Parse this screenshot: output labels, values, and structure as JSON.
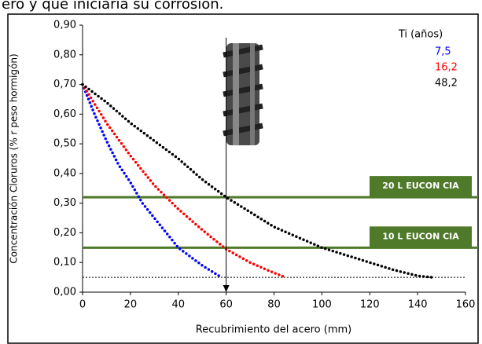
{
  "caption": "ero y que iniciaría su corrosión.",
  "chart_data": {
    "type": "line",
    "xlabel": "Recubrimiento del acero (mm)",
    "ylabel": "Concentración Cloruros (% r peso hormigón)",
    "legend_title": "Ti (años)",
    "legend": "upper right",
    "xlim": [
      0,
      160
    ],
    "xticks": [
      0,
      20,
      40,
      60,
      80,
      100,
      120,
      140,
      160
    ],
    "ylim": [
      0,
      0.9
    ],
    "yticks": [
      {
        "value": 0,
        "label": "0,00"
      },
      {
        "value": 0.1,
        "label": "0,10"
      },
      {
        "value": 0.2,
        "label": "0,20"
      },
      {
        "value": 0.3,
        "label": "0,30"
      },
      {
        "value": 0.4,
        "label": "0,40"
      },
      {
        "value": 0.5,
        "label": "0,50"
      },
      {
        "value": 0.6,
        "label": "0,60"
      },
      {
        "value": 0.7,
        "label": "0,70"
      },
      {
        "value": 0.8,
        "label": "0,80"
      },
      {
        "value": 0.9,
        "label": "0,90"
      }
    ],
    "series": [
      {
        "name": "7,5",
        "color": "#0000ff",
        "x": [
          0,
          5,
          10,
          15,
          20,
          25,
          30,
          35,
          40,
          45,
          50,
          55,
          58
        ],
        "values": [
          0.7,
          0.6,
          0.51,
          0.43,
          0.37,
          0.3,
          0.25,
          0.2,
          0.15,
          0.12,
          0.09,
          0.065,
          0.05
        ]
      },
      {
        "name": "16,2",
        "color": "#ff0000",
        "x": [
          0,
          10,
          20,
          30,
          35,
          40,
          50,
          60,
          70,
          80,
          85
        ],
        "values": [
          0.7,
          0.57,
          0.46,
          0.36,
          0.32,
          0.28,
          0.21,
          0.145,
          0.1,
          0.065,
          0.05
        ]
      },
      {
        "name": "48,2",
        "color": "#000000",
        "x": [
          0,
          10,
          20,
          30,
          40,
          50,
          60,
          70,
          80,
          90,
          100,
          110,
          120,
          130,
          140,
          146
        ],
        "values": [
          0.7,
          0.64,
          0.57,
          0.51,
          0.45,
          0.38,
          0.32,
          0.27,
          0.22,
          0.185,
          0.15,
          0.125,
          0.1,
          0.075,
          0.055,
          0.05
        ]
      }
    ],
    "thresholds": [
      {
        "label": "20 L EUCON CIA",
        "value": 0.32,
        "color": "#4e7a2a"
      },
      {
        "label": "10 L EUCON CIA",
        "value": 0.15,
        "color": "#4e7a2a"
      }
    ],
    "reference_y": 0.05,
    "marker_x": 60
  }
}
